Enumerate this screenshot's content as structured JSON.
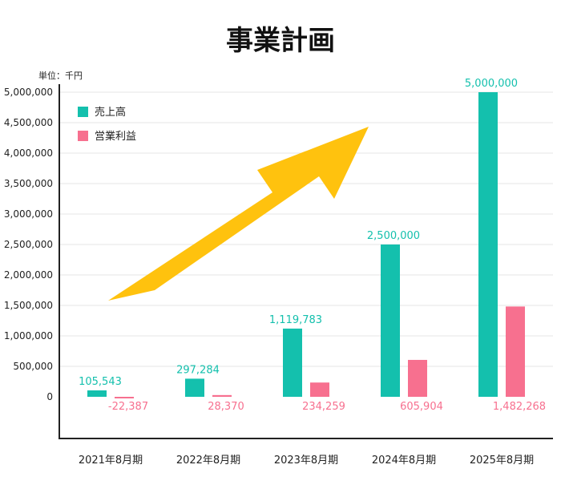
{
  "colors": {
    "sales": "#14c0ad",
    "profit": "#f7708f",
    "arrow": "#ffc20e",
    "grid": "#e6e6e6",
    "axis": "#222222"
  },
  "chart_data": {
    "type": "bar",
    "title": "事業計画",
    "unit_label": "単位：千円",
    "categories": [
      "2021年8月期",
      "2022年8月期",
      "2023年8月期",
      "2024年8月期",
      "2025年8月期"
    ],
    "series": [
      {
        "name": "売上高",
        "values": [
          105543,
          297284,
          1119783,
          2500000,
          5000000
        ],
        "labels": [
          "105,543",
          "297,284",
          "1,119,783",
          "2,500,000",
          "5,000,000"
        ]
      },
      {
        "name": "営業利益",
        "values": [
          -22387,
          28370,
          234259,
          605904,
          1482268
        ],
        "labels": [
          "-22,387",
          "28,370",
          "234,259",
          "605,904",
          "1,482,268"
        ]
      }
    ],
    "yticks": [
      "0",
      "500,000",
      "1,000,000",
      "1,500,000",
      "2,000,000",
      "2,500,000",
      "3,000,000",
      "3,500,000",
      "4,000,000",
      "4,500,000",
      "5,000,000"
    ],
    "ylim": [
      0,
      5000000
    ],
    "grid": true,
    "legend": "top-left",
    "annotation": "upward-arrow"
  }
}
